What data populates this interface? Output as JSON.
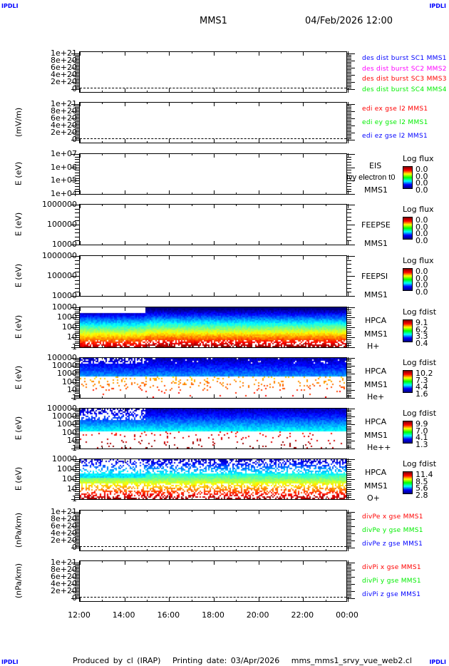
{
  "header": {
    "title": "MMS1",
    "datetime": "04/Feb/2026 12:00",
    "corner": "IPDLI"
  },
  "footer": {
    "produced": "Produced by cl (IRAP)",
    "printing": "Printing date: 03/Apr/2026",
    "script": "mms_mms1_srvy_vue_web2.cl"
  },
  "chart_data": {
    "type": "multi-panel time series / spectrogram",
    "x_ticks": [
      "12:00",
      "14:00",
      "16:00",
      "18:00",
      "20:00",
      "22:00",
      "00:00"
    ],
    "panels": [
      {
        "ylabel": "",
        "yticks": [
          "1e+21",
          "8e+20",
          "6e+20",
          "4e+20",
          "2e+20",
          "0"
        ],
        "zero_line": true,
        "legend": [
          {
            "text": "des dist burst SC1 MMS1",
            "color": "#0000ff"
          },
          {
            "text": "des dist burst SC2 MMS2",
            "color": "#ff00ff"
          },
          {
            "text": "des dist burst SC3 MMS3",
            "color": "#ff0000"
          },
          {
            "text": "des dist burst SC4 MMS4",
            "color": "#00ee00"
          }
        ]
      },
      {
        "ylabel": "(mV/m)",
        "yticks": [
          "1e+21",
          "8e+20",
          "6e+20",
          "4e+20",
          "2e+20",
          "0"
        ],
        "zero_line": true,
        "legend": [
          {
            "text": "edi ex gse l2 MMS1",
            "color": "#ff0000"
          },
          {
            "text": "edi ey gse l2 MMS1",
            "color": "#00ee00"
          },
          {
            "text": "edi ez gse l2 MMS1",
            "color": "#0000ff"
          }
        ]
      },
      {
        "ylabel": "E (eV)",
        "yticks": [
          "1e+07",
          "1e+06",
          "1e+05",
          "1e+04"
        ],
        "cb_title": "Log flux",
        "cb_values": [
          "0.0",
          "0.0",
          "0.0",
          "0.0"
        ],
        "labels": [
          "EIS",
          "Ivy electron t0",
          "MMS1"
        ]
      },
      {
        "ylabel": "E (eV)",
        "yticks": [
          "1000000",
          "100000",
          "10000"
        ],
        "cb_title": "Log flux",
        "cb_values": [
          "0.0",
          "0.0",
          "0.0",
          "0.0"
        ],
        "labels": [
          "FEEPSE",
          "MMS1"
        ]
      },
      {
        "ylabel": "E (eV)",
        "yticks": [
          "1000000",
          "100000",
          "10000"
        ],
        "cb_title": "Log flux",
        "cb_values": [
          "0.0",
          "0.0",
          "0.0",
          "0.0"
        ],
        "labels": [
          "FEEPSI",
          "MMS1"
        ]
      },
      {
        "ylabel": "E (eV)",
        "yticks": [
          "10000",
          "1000",
          "100",
          "10",
          "1"
        ],
        "cb_title": "Log fdist",
        "cb_values": [
          "9.1",
          "6.2",
          "3.3",
          "0.4"
        ],
        "labels": [
          "HPCA",
          "MMS1",
          "H+"
        ],
        "spectro": 1
      },
      {
        "ylabel": "E (eV)",
        "yticks": [
          "100000",
          "10000",
          "1000",
          "100",
          "10",
          "1"
        ],
        "cb_title": "Log fdist",
        "cb_values": [
          "10.2",
          "7.3",
          "4.4",
          "1.6"
        ],
        "labels": [
          "HPCA",
          "MMS1",
          "He+"
        ],
        "spectro": 2
      },
      {
        "ylabel": "E (eV)",
        "yticks": [
          "100000",
          "10000",
          "1000",
          "100",
          "10",
          "1"
        ],
        "cb_title": "Log fdist",
        "cb_values": [
          "9.9",
          "7.0",
          "4.1",
          "1.3"
        ],
        "labels": [
          "HPCA",
          "MMS1",
          "He++"
        ],
        "spectro": 3
      },
      {
        "ylabel": "E (eV)",
        "yticks": [
          "10000",
          "1000",
          "100",
          "10",
          "1"
        ],
        "cb_title": "Log fdist",
        "cb_values": [
          "11.4",
          "8.5",
          "5.6",
          "2.8"
        ],
        "labels": [
          "HPCA",
          "MMS1",
          "O+"
        ],
        "spectro": 4
      },
      {
        "ylabel": "(nPa/km)",
        "yticks": [
          "1e+21",
          "8e+20",
          "6e+20",
          "4e+20",
          "2e+20",
          "0"
        ],
        "zero_line": true,
        "legend": [
          {
            "text": "divPe x gse MMS1",
            "color": "#ff0000"
          },
          {
            "text": "divPe y gse MMS1",
            "color": "#00ee00"
          },
          {
            "text": "divPe z gse MMS1",
            "color": "#0000ff"
          }
        ]
      },
      {
        "ylabel": "(nPa/km)",
        "yticks": [
          "1e+21",
          "8e+20",
          "6e+20",
          "4e+20",
          "2e+20",
          "0"
        ],
        "zero_line": true,
        "legend": [
          {
            "text": "divPi x gse MMS1",
            "color": "#ff0000"
          },
          {
            "text": "divPi y gse MMS1",
            "color": "#00ee00"
          },
          {
            "text": "divPi z gse MMS1",
            "color": "#0000ff"
          }
        ]
      }
    ]
  }
}
